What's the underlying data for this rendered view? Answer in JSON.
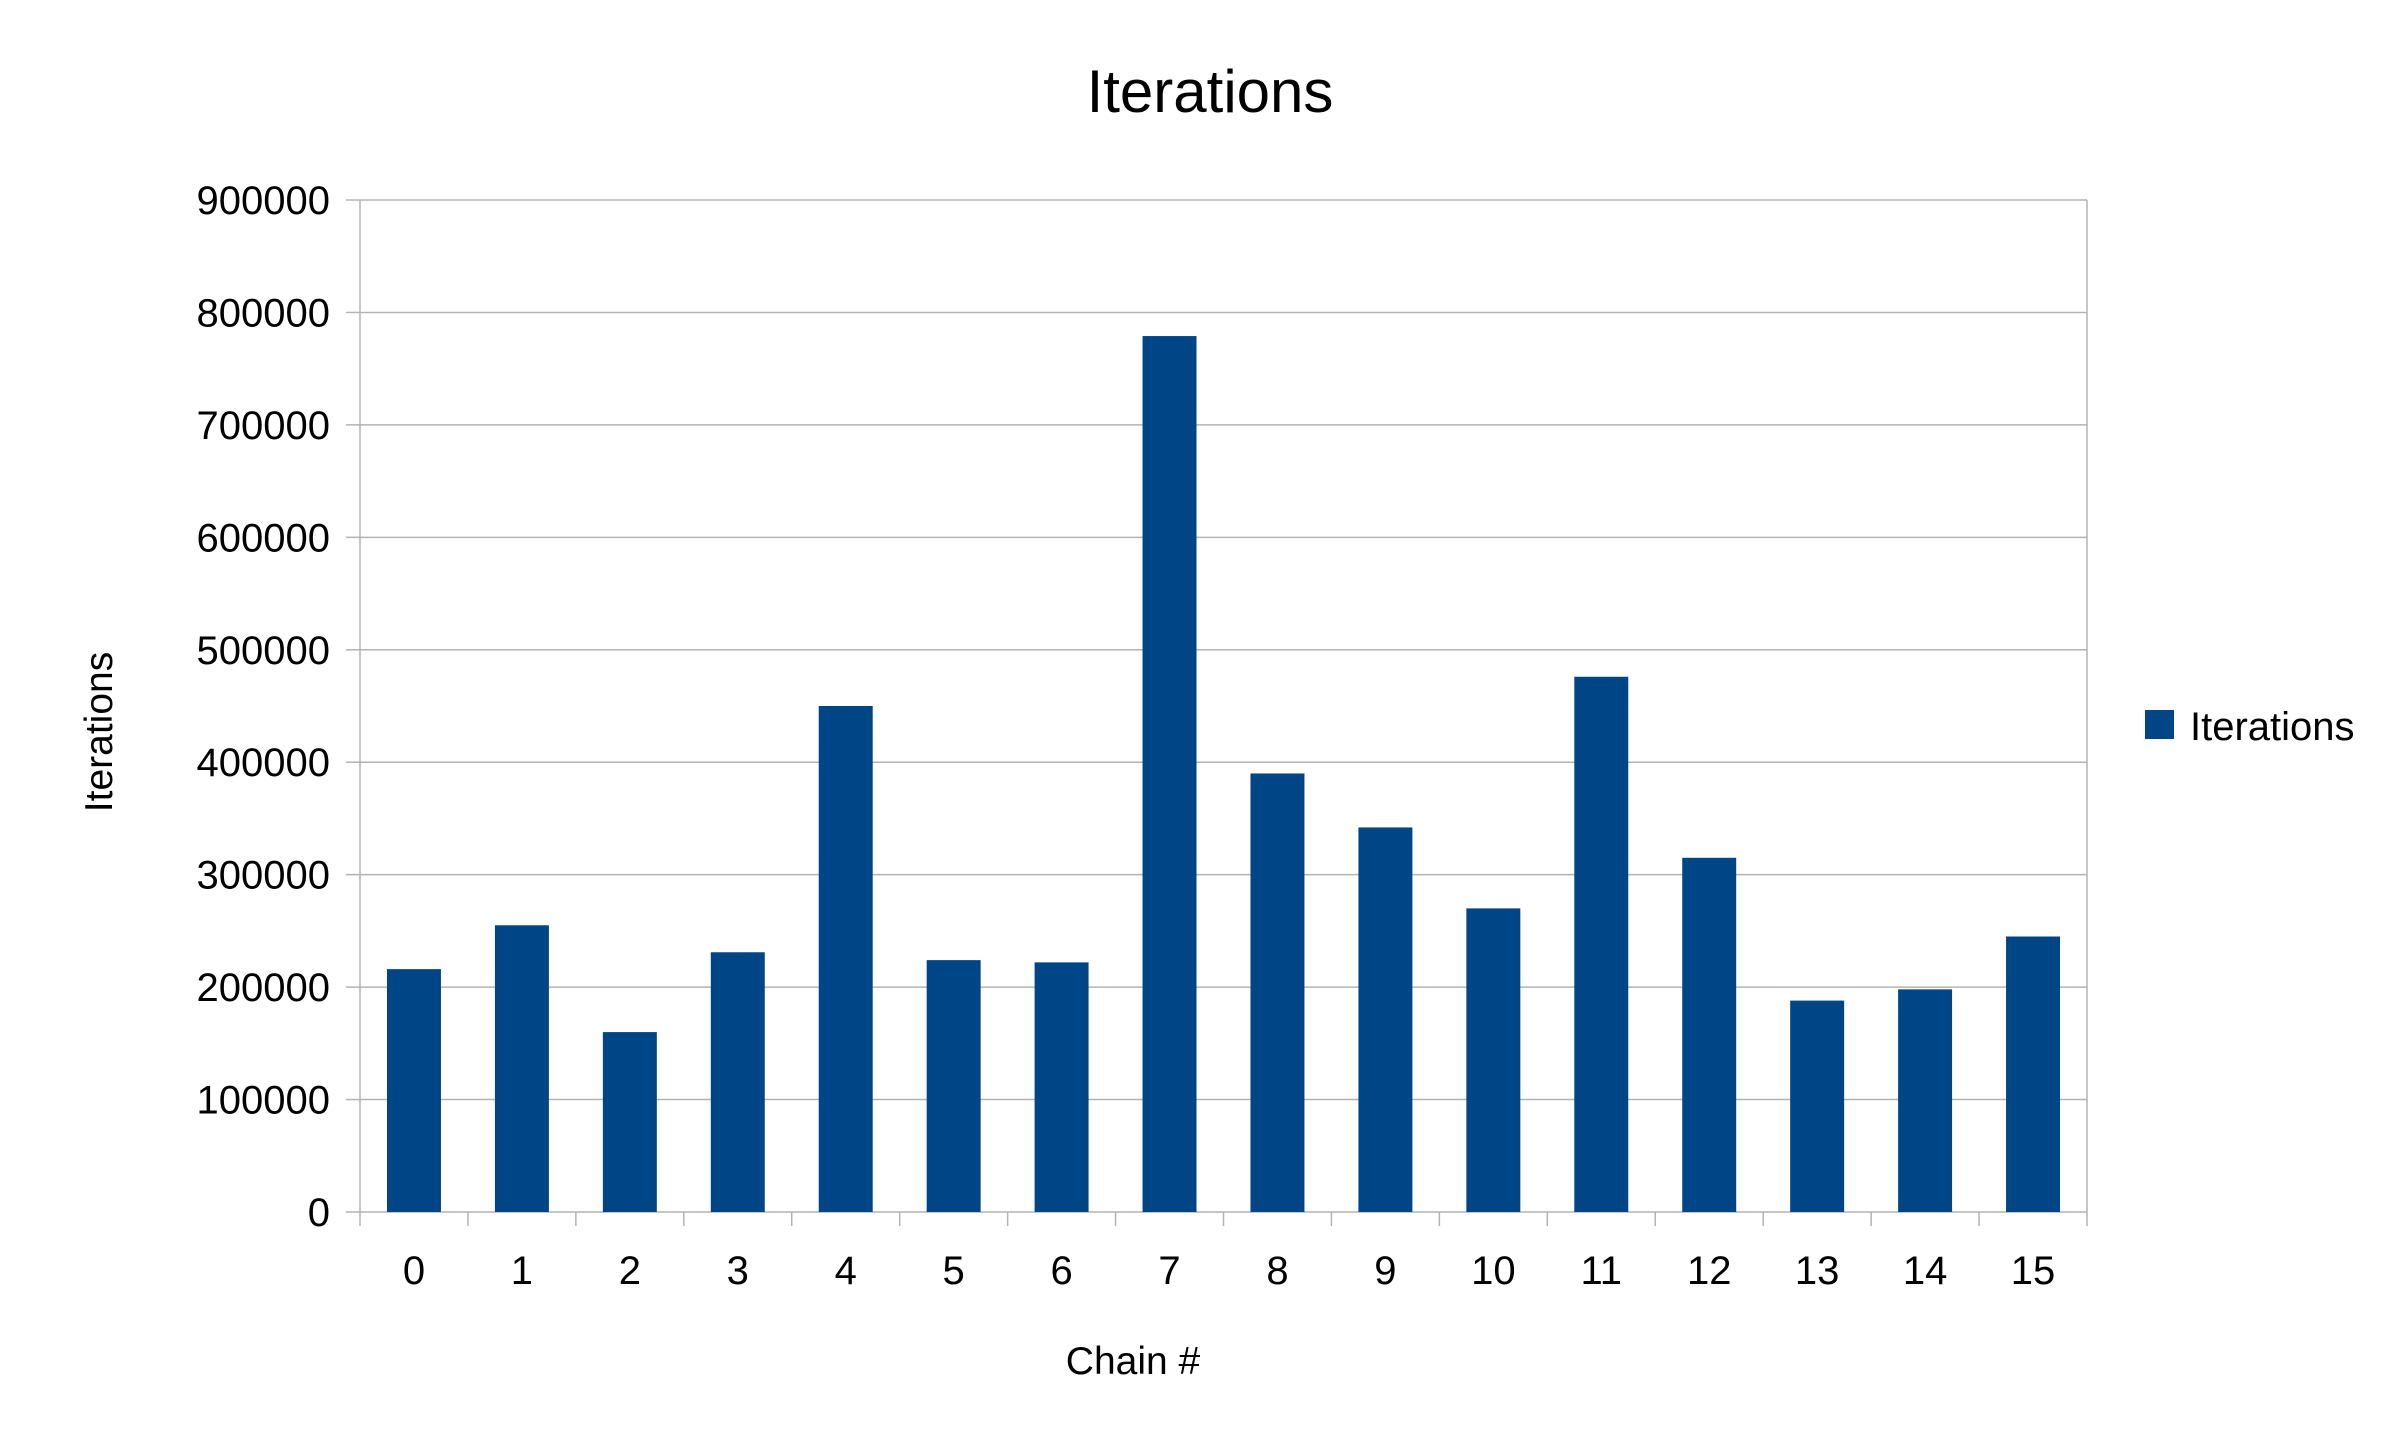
{
  "chart_data": {
    "type": "bar",
    "title": "Iterations",
    "xlabel": "Chain #",
    "ylabel": "Iterations",
    "categories": [
      "0",
      "1",
      "2",
      "3",
      "4",
      "5",
      "6",
      "7",
      "8",
      "9",
      "10",
      "11",
      "12",
      "13",
      "14",
      "15"
    ],
    "series": [
      {
        "name": "Iterations",
        "color": "#004586",
        "values": [
          216000,
          255000,
          160000,
          231000,
          450000,
          224000,
          222000,
          779000,
          390000,
          342000,
          270000,
          476000,
          315000,
          188000,
          198000,
          245000
        ]
      }
    ],
    "ylim": [
      0,
      900000
    ],
    "yticks": [
      "0",
      "100000",
      "200000",
      "300000",
      "400000",
      "500000",
      "600000",
      "700000",
      "800000",
      "900000"
    ],
    "grid": true,
    "legend": {
      "position": "right",
      "entries": [
        "Iterations"
      ]
    },
    "colors": {
      "bar": "#004586",
      "grid": "#b3b3b3"
    }
  }
}
